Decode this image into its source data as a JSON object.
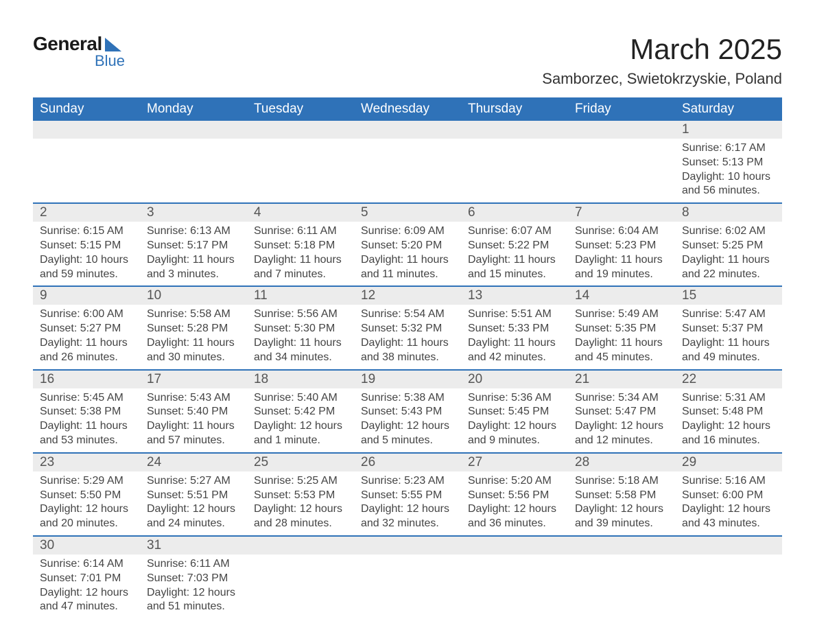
{
  "logo": {
    "top": "General",
    "bottom": "Blue"
  },
  "title": "March 2025",
  "location": "Samborzec, Swietokrzyskie, Poland",
  "colors": {
    "header_bg": "#2f72b8",
    "header_text": "#ffffff",
    "daynum_bg": "#ececec",
    "border": "#2f72b8",
    "logo_accent": "#2f72b8",
    "body_text": "#444444"
  },
  "layout": {
    "type": "table",
    "columns": 7,
    "rows": 6,
    "header_fontsize": 19,
    "body_fontsize": 16,
    "title_fontsize": 42
  },
  "weekdays": [
    "Sunday",
    "Monday",
    "Tuesday",
    "Wednesday",
    "Thursday",
    "Friday",
    "Saturday"
  ],
  "weeks": [
    [
      {
        "empty": true
      },
      {
        "empty": true
      },
      {
        "empty": true
      },
      {
        "empty": true
      },
      {
        "empty": true
      },
      {
        "empty": true
      },
      {
        "day": "1",
        "sunrise": "Sunrise: 6:17 AM",
        "sunset": "Sunset: 5:13 PM",
        "daylight1": "Daylight: 10 hours",
        "daylight2": "and 56 minutes."
      }
    ],
    [
      {
        "day": "2",
        "sunrise": "Sunrise: 6:15 AM",
        "sunset": "Sunset: 5:15 PM",
        "daylight1": "Daylight: 10 hours",
        "daylight2": "and 59 minutes."
      },
      {
        "day": "3",
        "sunrise": "Sunrise: 6:13 AM",
        "sunset": "Sunset: 5:17 PM",
        "daylight1": "Daylight: 11 hours",
        "daylight2": "and 3 minutes."
      },
      {
        "day": "4",
        "sunrise": "Sunrise: 6:11 AM",
        "sunset": "Sunset: 5:18 PM",
        "daylight1": "Daylight: 11 hours",
        "daylight2": "and 7 minutes."
      },
      {
        "day": "5",
        "sunrise": "Sunrise: 6:09 AM",
        "sunset": "Sunset: 5:20 PM",
        "daylight1": "Daylight: 11 hours",
        "daylight2": "and 11 minutes."
      },
      {
        "day": "6",
        "sunrise": "Sunrise: 6:07 AM",
        "sunset": "Sunset: 5:22 PM",
        "daylight1": "Daylight: 11 hours",
        "daylight2": "and 15 minutes."
      },
      {
        "day": "7",
        "sunrise": "Sunrise: 6:04 AM",
        "sunset": "Sunset: 5:23 PM",
        "daylight1": "Daylight: 11 hours",
        "daylight2": "and 19 minutes."
      },
      {
        "day": "8",
        "sunrise": "Sunrise: 6:02 AM",
        "sunset": "Sunset: 5:25 PM",
        "daylight1": "Daylight: 11 hours",
        "daylight2": "and 22 minutes."
      }
    ],
    [
      {
        "day": "9",
        "sunrise": "Sunrise: 6:00 AM",
        "sunset": "Sunset: 5:27 PM",
        "daylight1": "Daylight: 11 hours",
        "daylight2": "and 26 minutes."
      },
      {
        "day": "10",
        "sunrise": "Sunrise: 5:58 AM",
        "sunset": "Sunset: 5:28 PM",
        "daylight1": "Daylight: 11 hours",
        "daylight2": "and 30 minutes."
      },
      {
        "day": "11",
        "sunrise": "Sunrise: 5:56 AM",
        "sunset": "Sunset: 5:30 PM",
        "daylight1": "Daylight: 11 hours",
        "daylight2": "and 34 minutes."
      },
      {
        "day": "12",
        "sunrise": "Sunrise: 5:54 AM",
        "sunset": "Sunset: 5:32 PM",
        "daylight1": "Daylight: 11 hours",
        "daylight2": "and 38 minutes."
      },
      {
        "day": "13",
        "sunrise": "Sunrise: 5:51 AM",
        "sunset": "Sunset: 5:33 PM",
        "daylight1": "Daylight: 11 hours",
        "daylight2": "and 42 minutes."
      },
      {
        "day": "14",
        "sunrise": "Sunrise: 5:49 AM",
        "sunset": "Sunset: 5:35 PM",
        "daylight1": "Daylight: 11 hours",
        "daylight2": "and 45 minutes."
      },
      {
        "day": "15",
        "sunrise": "Sunrise: 5:47 AM",
        "sunset": "Sunset: 5:37 PM",
        "daylight1": "Daylight: 11 hours",
        "daylight2": "and 49 minutes."
      }
    ],
    [
      {
        "day": "16",
        "sunrise": "Sunrise: 5:45 AM",
        "sunset": "Sunset: 5:38 PM",
        "daylight1": "Daylight: 11 hours",
        "daylight2": "and 53 minutes."
      },
      {
        "day": "17",
        "sunrise": "Sunrise: 5:43 AM",
        "sunset": "Sunset: 5:40 PM",
        "daylight1": "Daylight: 11 hours",
        "daylight2": "and 57 minutes."
      },
      {
        "day": "18",
        "sunrise": "Sunrise: 5:40 AM",
        "sunset": "Sunset: 5:42 PM",
        "daylight1": "Daylight: 12 hours",
        "daylight2": "and 1 minute."
      },
      {
        "day": "19",
        "sunrise": "Sunrise: 5:38 AM",
        "sunset": "Sunset: 5:43 PM",
        "daylight1": "Daylight: 12 hours",
        "daylight2": "and 5 minutes."
      },
      {
        "day": "20",
        "sunrise": "Sunrise: 5:36 AM",
        "sunset": "Sunset: 5:45 PM",
        "daylight1": "Daylight: 12 hours",
        "daylight2": "and 9 minutes."
      },
      {
        "day": "21",
        "sunrise": "Sunrise: 5:34 AM",
        "sunset": "Sunset: 5:47 PM",
        "daylight1": "Daylight: 12 hours",
        "daylight2": "and 12 minutes."
      },
      {
        "day": "22",
        "sunrise": "Sunrise: 5:31 AM",
        "sunset": "Sunset: 5:48 PM",
        "daylight1": "Daylight: 12 hours",
        "daylight2": "and 16 minutes."
      }
    ],
    [
      {
        "day": "23",
        "sunrise": "Sunrise: 5:29 AM",
        "sunset": "Sunset: 5:50 PM",
        "daylight1": "Daylight: 12 hours",
        "daylight2": "and 20 minutes."
      },
      {
        "day": "24",
        "sunrise": "Sunrise: 5:27 AM",
        "sunset": "Sunset: 5:51 PM",
        "daylight1": "Daylight: 12 hours",
        "daylight2": "and 24 minutes."
      },
      {
        "day": "25",
        "sunrise": "Sunrise: 5:25 AM",
        "sunset": "Sunset: 5:53 PM",
        "daylight1": "Daylight: 12 hours",
        "daylight2": "and 28 minutes."
      },
      {
        "day": "26",
        "sunrise": "Sunrise: 5:23 AM",
        "sunset": "Sunset: 5:55 PM",
        "daylight1": "Daylight: 12 hours",
        "daylight2": "and 32 minutes."
      },
      {
        "day": "27",
        "sunrise": "Sunrise: 5:20 AM",
        "sunset": "Sunset: 5:56 PM",
        "daylight1": "Daylight: 12 hours",
        "daylight2": "and 36 minutes."
      },
      {
        "day": "28",
        "sunrise": "Sunrise: 5:18 AM",
        "sunset": "Sunset: 5:58 PM",
        "daylight1": "Daylight: 12 hours",
        "daylight2": "and 39 minutes."
      },
      {
        "day": "29",
        "sunrise": "Sunrise: 5:16 AM",
        "sunset": "Sunset: 6:00 PM",
        "daylight1": "Daylight: 12 hours",
        "daylight2": "and 43 minutes."
      }
    ],
    [
      {
        "day": "30",
        "sunrise": "Sunrise: 6:14 AM",
        "sunset": "Sunset: 7:01 PM",
        "daylight1": "Daylight: 12 hours",
        "daylight2": "and 47 minutes."
      },
      {
        "day": "31",
        "sunrise": "Sunrise: 6:11 AM",
        "sunset": "Sunset: 7:03 PM",
        "daylight1": "Daylight: 12 hours",
        "daylight2": "and 51 minutes."
      },
      {
        "empty": true
      },
      {
        "empty": true
      },
      {
        "empty": true
      },
      {
        "empty": true
      },
      {
        "empty": true
      }
    ]
  ]
}
